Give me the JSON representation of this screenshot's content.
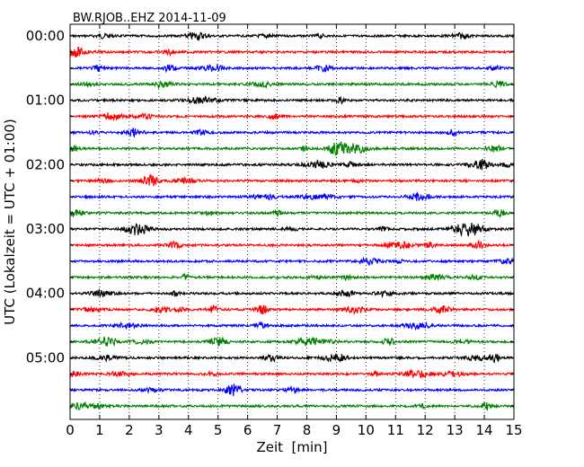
{
  "chart_data": {
    "type": "line",
    "title": "BW.RJOB..EHZ 2014-11-09",
    "xlabel": "Zeit  [min]",
    "ylabel": "UTC (Lokalzeit = UTC + 01:00)",
    "xlim": [
      0,
      15
    ],
    "x_ticks": [
      "0",
      "1",
      "2",
      "3",
      "4",
      "5",
      "6",
      "7",
      "8",
      "9",
      "10",
      "11",
      "12",
      "13",
      "14",
      "15"
    ],
    "y_tick_labels": [
      "00:00",
      "01:00",
      "02:00",
      "03:00",
      "04:00",
      "05:00"
    ],
    "grid": {
      "x": "dotted",
      "y": false
    },
    "trace_colors": [
      "#000000",
      "#ff0000",
      "#0000ff",
      "#008000"
    ],
    "trace_count": 24,
    "minutes_per_trace": 15
  }
}
